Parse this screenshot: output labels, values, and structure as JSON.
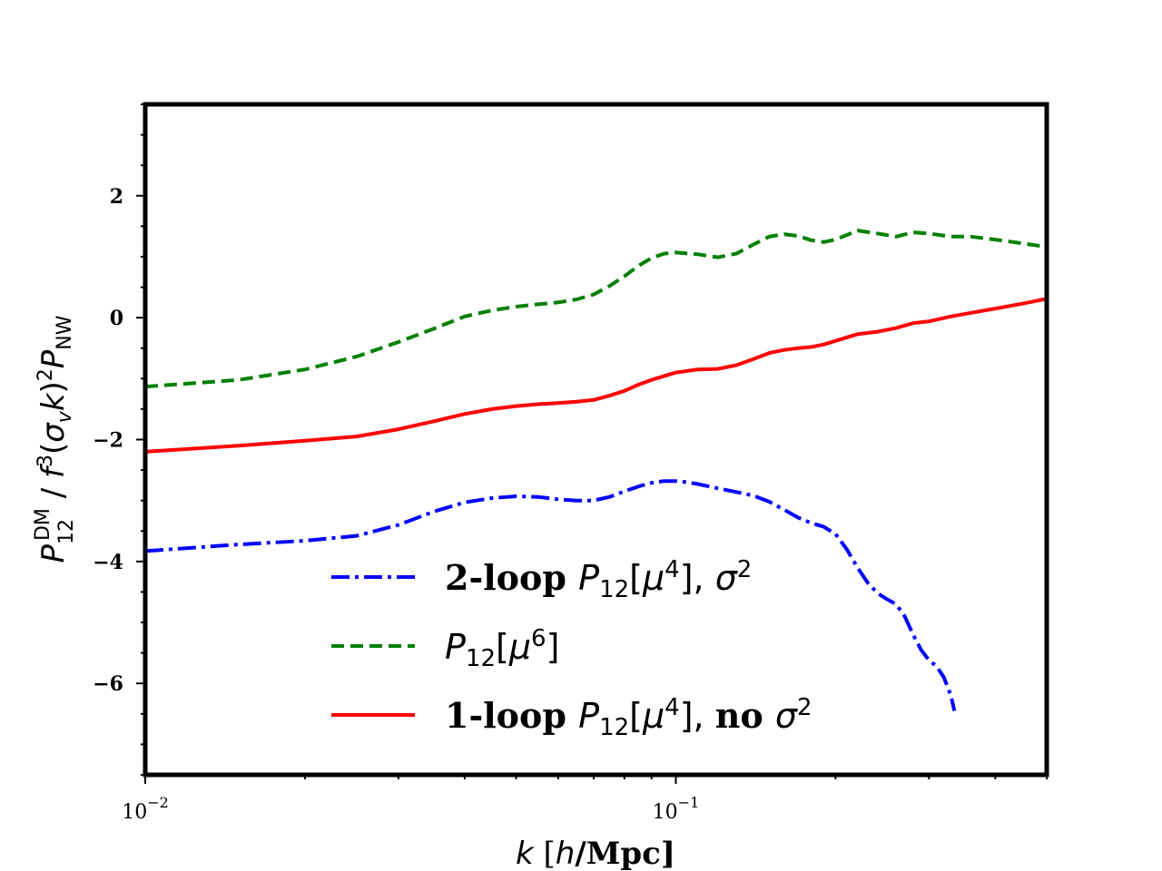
{
  "chart_data": {
    "type": "line",
    "x_scale": "log",
    "xlim": [
      0.01,
      0.5
    ],
    "ylim": [
      -7.5,
      3.5
    ],
    "xlabel": "k [h/Mpc]",
    "ylabel": "P_12^DM / f^3(σ_v k)^2 P_NW",
    "x_ticks": [
      {
        "value": 0.01,
        "base": "10",
        "exp": "−2"
      },
      {
        "value": 0.1,
        "base": "10",
        "exp": "−1"
      }
    ],
    "y_ticks": [
      {
        "value": 2,
        "label": "2"
      },
      {
        "value": 0,
        "label": "0"
      },
      {
        "value": -2,
        "label": "−2"
      },
      {
        "value": -4,
        "label": "−4"
      },
      {
        "value": -6,
        "label": "−6"
      }
    ],
    "legend_position": "lower-center",
    "series": [
      {
        "name": "2-loop P12[μ4], σ2",
        "color": "#0000ff",
        "style": "dashdot",
        "x": [
          0.01,
          0.015,
          0.02,
          0.025,
          0.03,
          0.035,
          0.04,
          0.045,
          0.05,
          0.055,
          0.06,
          0.065,
          0.07,
          0.075,
          0.08,
          0.085,
          0.09,
          0.095,
          0.1,
          0.105,
          0.11,
          0.12,
          0.13,
          0.14,
          0.15,
          0.16,
          0.17,
          0.18,
          0.19,
          0.2,
          0.21,
          0.22,
          0.23,
          0.24,
          0.25,
          0.26,
          0.27,
          0.28,
          0.29,
          0.3,
          0.31,
          0.32,
          0.33,
          0.335
        ],
        "y": [
          -3.83,
          -3.72,
          -3.66,
          -3.58,
          -3.4,
          -3.18,
          -3.03,
          -2.96,
          -2.93,
          -2.94,
          -2.98,
          -3.0,
          -3.0,
          -2.94,
          -2.85,
          -2.77,
          -2.71,
          -2.68,
          -2.68,
          -2.7,
          -2.73,
          -2.8,
          -2.86,
          -2.92,
          -3.02,
          -3.15,
          -3.28,
          -3.37,
          -3.43,
          -3.55,
          -3.8,
          -4.1,
          -4.35,
          -4.52,
          -4.62,
          -4.7,
          -4.9,
          -5.2,
          -5.45,
          -5.62,
          -5.72,
          -5.9,
          -6.2,
          -6.45
        ]
      },
      {
        "name": "P12[μ6]",
        "color": "#008000",
        "style": "dashed",
        "x": [
          0.01,
          0.015,
          0.02,
          0.025,
          0.03,
          0.035,
          0.04,
          0.045,
          0.05,
          0.055,
          0.06,
          0.065,
          0.07,
          0.075,
          0.08,
          0.085,
          0.09,
          0.095,
          0.1,
          0.11,
          0.12,
          0.13,
          0.14,
          0.15,
          0.16,
          0.17,
          0.18,
          0.19,
          0.2,
          0.22,
          0.24,
          0.26,
          0.28,
          0.3,
          0.33,
          0.36,
          0.4,
          0.45,
          0.5
        ],
        "y": [
          -1.13,
          -1.02,
          -0.85,
          -0.64,
          -0.4,
          -0.18,
          0.02,
          0.12,
          0.18,
          0.22,
          0.25,
          0.3,
          0.38,
          0.52,
          0.68,
          0.85,
          0.98,
          1.05,
          1.07,
          1.04,
          0.99,
          1.05,
          1.2,
          1.33,
          1.37,
          1.34,
          1.27,
          1.24,
          1.28,
          1.43,
          1.38,
          1.33,
          1.4,
          1.38,
          1.33,
          1.33,
          1.28,
          1.22,
          1.16
        ]
      },
      {
        "name": "1-loop P12[μ4], no σ2",
        "color": "#ff0000",
        "style": "solid",
        "x": [
          0.01,
          0.015,
          0.02,
          0.025,
          0.03,
          0.035,
          0.04,
          0.045,
          0.05,
          0.055,
          0.06,
          0.065,
          0.07,
          0.075,
          0.08,
          0.085,
          0.09,
          0.1,
          0.11,
          0.12,
          0.13,
          0.14,
          0.15,
          0.16,
          0.17,
          0.18,
          0.19,
          0.2,
          0.22,
          0.24,
          0.26,
          0.28,
          0.3,
          0.33,
          0.36,
          0.4,
          0.45,
          0.5
        ],
        "y": [
          -2.2,
          -2.1,
          -2.02,
          -1.95,
          -1.83,
          -1.7,
          -1.58,
          -1.5,
          -1.45,
          -1.42,
          -1.4,
          -1.38,
          -1.35,
          -1.28,
          -1.2,
          -1.1,
          -1.02,
          -0.9,
          -0.85,
          -0.84,
          -0.78,
          -0.68,
          -0.58,
          -0.53,
          -0.5,
          -0.48,
          -0.44,
          -0.38,
          -0.27,
          -0.23,
          -0.17,
          -0.09,
          -0.06,
          0.02,
          0.08,
          0.15,
          0.23,
          0.31
        ]
      }
    ]
  }
}
